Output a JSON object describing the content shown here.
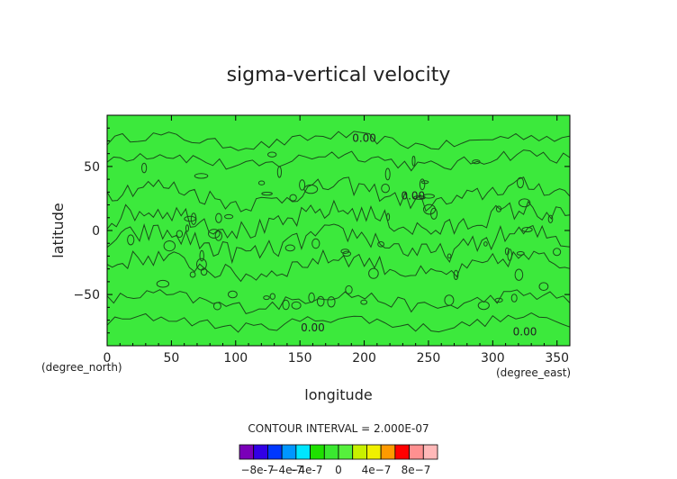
{
  "chart_data": {
    "type": "heatmap",
    "title": "sigma-vertical velocity",
    "xlabel": "longitude",
    "ylabel": "latitude",
    "x_unit": "(degree_east)",
    "y_unit": "(degree_north)",
    "xlim": [
      0,
      360
    ],
    "ylim": [
      -90,
      90
    ],
    "x_ticks": [
      "0",
      "50",
      "100",
      "150",
      "200",
      "250",
      "300",
      "350"
    ],
    "y_ticks": [
      "50",
      "0",
      "-50"
    ],
    "contour_interval_text": "CONTOUR INTERVAL = 2.000E-07",
    "contour_labels": [
      {
        "text": "0.00",
        "lon": 200,
        "lat": 72
      },
      {
        "text": "0.00",
        "lon": 238,
        "lat": 27
      },
      {
        "text": "0.00",
        "lon": 160,
        "lat": -76
      },
      {
        "text": "0.00",
        "lon": 325,
        "lat": -79
      }
    ],
    "field_value": 0,
    "colorbar": {
      "colors": [
        "#7a00b8",
        "#3200e6",
        "#0038ff",
        "#0096ff",
        "#00e6ff",
        "#1fe000",
        "#3ae830",
        "#56f03c",
        "#c8f000",
        "#f0f000",
        "#ff9a00",
        "#ff0000",
        "#ff9090",
        "#ffb8b8"
      ],
      "labels": [
        "-8e-7",
        "-4e-7",
        "-4e-7",
        "0",
        "4e-7",
        "8e-7"
      ]
    },
    "colors": {
      "field": "#3ce93c",
      "contour": "#1a4d1a",
      "axis": "#000000"
    }
  }
}
